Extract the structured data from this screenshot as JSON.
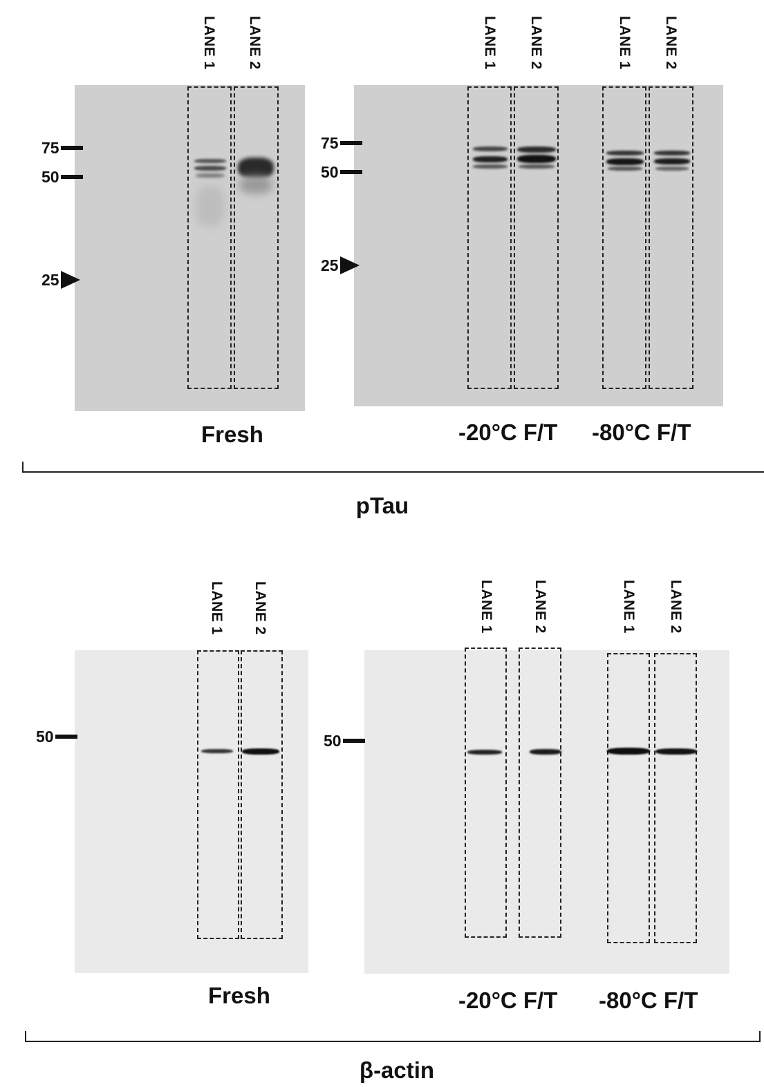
{
  "panels": {
    "ptau": {
      "antibody": "pTau",
      "fresh": {
        "condition": "Fresh",
        "lanes": [
          "LANE 1",
          "LANE 2"
        ],
        "markers": [
          {
            "label": "75",
            "type": "bar"
          },
          {
            "label": "50",
            "type": "bar"
          },
          {
            "label": "25",
            "type": "arrow"
          }
        ]
      },
      "frozen": {
        "conditions": [
          "-20°C F/T",
          "-80°C F/T"
        ],
        "lanes": [
          "LANE 1",
          "LANE 2",
          "LANE 1",
          "LANE 2"
        ],
        "markers": [
          {
            "label": "75",
            "type": "bar"
          },
          {
            "label": "50",
            "type": "bar"
          },
          {
            "label": "25",
            "type": "arrow"
          }
        ]
      }
    },
    "actin": {
      "antibody": "β-actin",
      "fresh": {
        "condition": "Fresh",
        "lanes": [
          "LANE 1",
          "LANE 2"
        ],
        "markers": [
          {
            "label": "50",
            "type": "bar"
          }
        ]
      },
      "frozen": {
        "conditions": [
          "-20°C F/T",
          "-80°C F/T"
        ],
        "lanes": [
          "LANE 1",
          "LANE 2",
          "LANE 1",
          "LANE 2"
        ],
        "markers": [
          {
            "label": "50",
            "type": "bar"
          }
        ]
      }
    }
  },
  "colors": {
    "ptau_membrane": "#cfcfcf",
    "actin_membrane": "#eaeaea",
    "band": "#111111"
  }
}
